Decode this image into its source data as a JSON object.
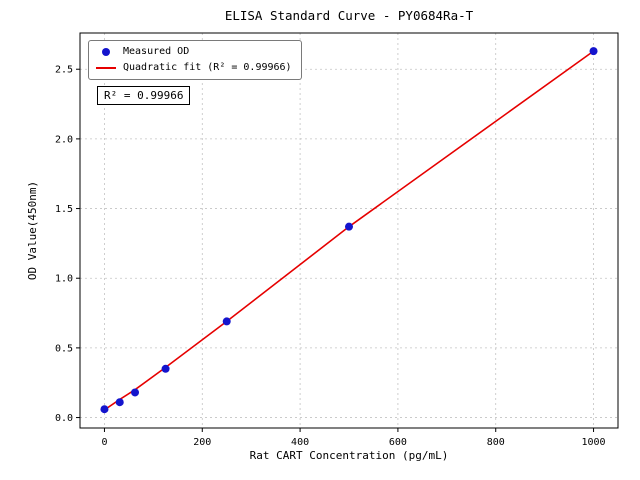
{
  "window": {
    "background": "#ffffff"
  },
  "chart_data": {
    "type": "scatter",
    "title": "ELISA Standard Curve - PY0684Ra-T",
    "xlabel": "Rat CART Concentration (pg/mL)",
    "ylabel": "OD Value(450nm)",
    "xlim": [
      -50,
      1050
    ],
    "ylim": [
      -0.075,
      2.76
    ],
    "xticks": [
      0,
      200,
      400,
      600,
      800,
      1000
    ],
    "yticks": [
      0.0,
      0.5,
      1.0,
      1.5,
      2.0,
      2.5
    ],
    "grid": true,
    "grid_color": "#c3c3c3",
    "legend_position": "upper-left",
    "series": [
      {
        "name": "Measured OD",
        "type": "scatter",
        "color": "#1414cd",
        "x": [
          0,
          31.25,
          62.5,
          125,
          250,
          500,
          1000
        ],
        "y": [
          0.06,
          0.11,
          0.18,
          0.35,
          0.69,
          1.37,
          2.63
        ]
      },
      {
        "name": "Quadratic fit (R² = 0.99966)",
        "type": "line",
        "color": "#e60000",
        "x": [
          0,
          31.25,
          62.5,
          125,
          250,
          500,
          1000
        ],
        "y": [
          0.055,
          0.13,
          0.2,
          0.36,
          0.69,
          1.37,
          2.63
        ]
      }
    ],
    "annotation": "R² = 0.99966"
  }
}
